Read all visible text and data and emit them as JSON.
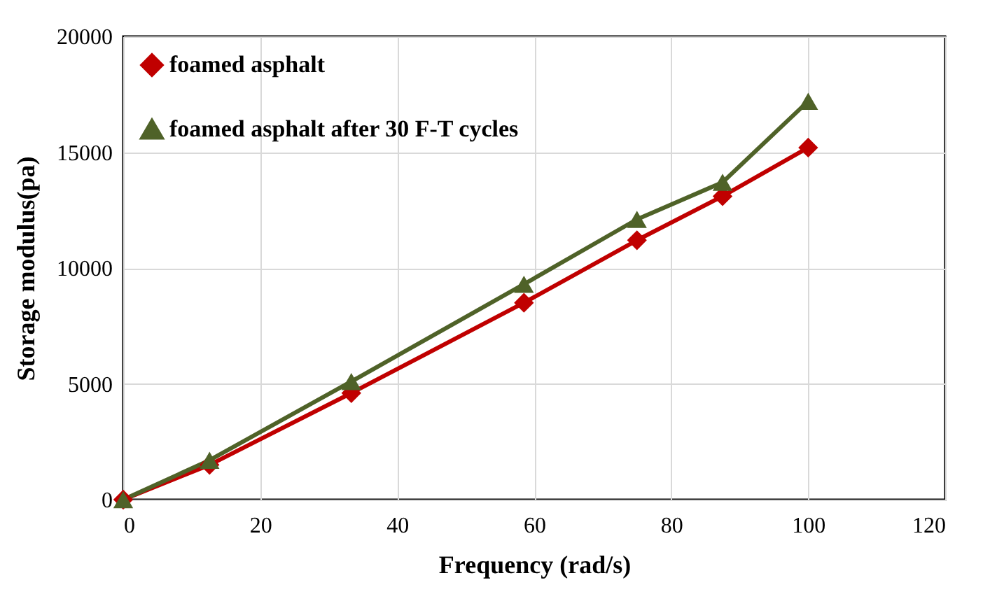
{
  "chart_data": {
    "type": "line",
    "xlabel": "Frequency (rad/s)",
    "ylabel": "Storage modulus(pa)",
    "x": [
      0,
      12.6,
      33.3,
      58.5,
      75,
      87.5,
      100
    ],
    "series": [
      {
        "name": "foamed asphalt",
        "color": "#c00000",
        "marker": "diamond",
        "values": [
          0,
          1500,
          4600,
          8500,
          11200,
          13100,
          15200
        ]
      },
      {
        "name": "foamed asphalt after 30 F-T cycles",
        "color": "#4f6228",
        "marker": "triangle",
        "values": [
          0,
          1700,
          5100,
          9300,
          12100,
          13700,
          17200
        ]
      }
    ],
    "xlim": [
      0,
      120
    ],
    "xticks": [
      0,
      20,
      40,
      60,
      80,
      100,
      120
    ],
    "ylim": [
      0,
      20000
    ],
    "yticks": [
      0,
      5000,
      10000,
      15000,
      20000
    ],
    "grid": true,
    "legend": "top left",
    "line_style": "solid"
  }
}
